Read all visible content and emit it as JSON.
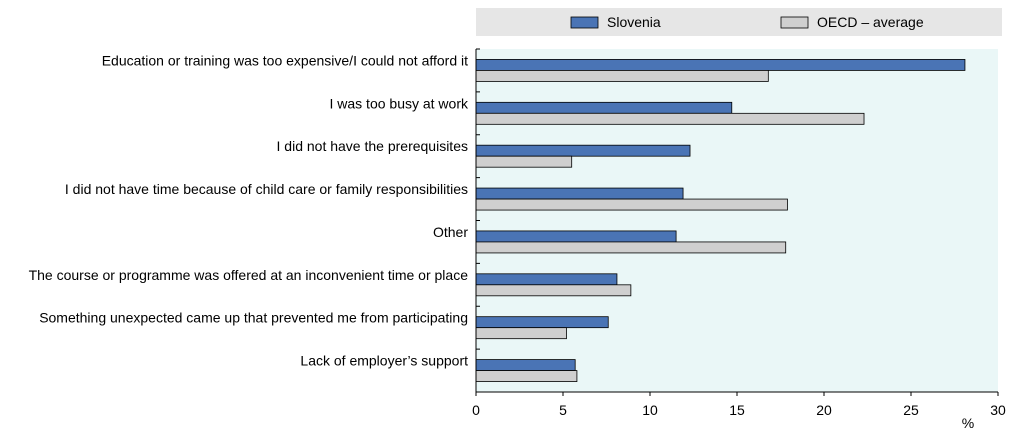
{
  "chart_data": {
    "type": "bar",
    "orientation": "horizontal",
    "categories": [
      "Education or training was too expensive/I could not afford it",
      "I was too busy at work",
      "I did not have the prerequisites",
      "I did not have time because of child care or family responsibilities",
      "Other",
      "The course or programme was offered at an inconvenient time or place",
      "Something unexpected came up that prevented me from participating",
      "Lack of employer’s support"
    ],
    "series": [
      {
        "name": "Slovenia",
        "color": "#4a74b5",
        "values": [
          28.1,
          14.7,
          12.3,
          11.9,
          11.5,
          8.1,
          7.6,
          5.7
        ]
      },
      {
        "name": "OECD – average",
        "color": "#cfcfcf",
        "values": [
          16.8,
          22.3,
          5.5,
          17.9,
          17.8,
          8.9,
          5.2,
          5.8
        ]
      }
    ],
    "xlim": [
      0,
      30
    ],
    "xticks": [
      0,
      5,
      10,
      15,
      20,
      25,
      30
    ],
    "xunit": "%",
    "legend_position": "top",
    "plot_background": "#eaf7f7",
    "legend_background": "#e6e6e6"
  }
}
